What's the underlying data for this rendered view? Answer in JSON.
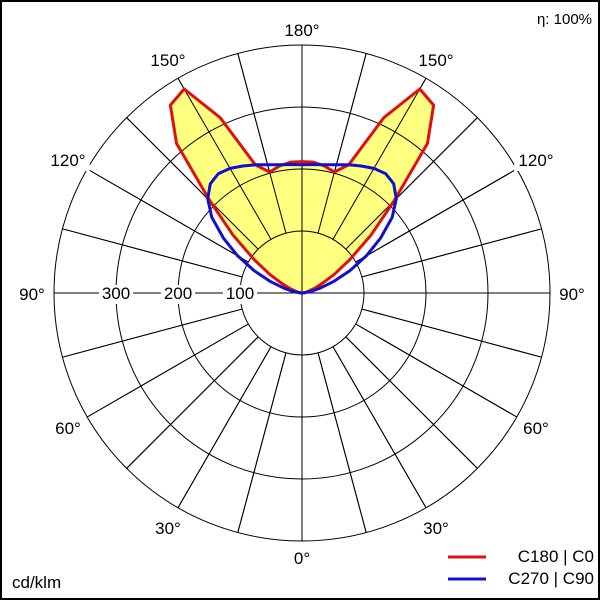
{
  "chart_data": {
    "type": "polar",
    "efficiency_label": "η: 100%",
    "unit_label": "cd/klm",
    "r_max": 400,
    "r_rings": [
      100,
      200,
      300,
      400
    ],
    "r_tick_labels": [
      "100",
      "200",
      "300"
    ],
    "angle_labels": [
      {
        "text": "180°",
        "position": "top"
      },
      {
        "text": "150°",
        "position": "upper-left"
      },
      {
        "text": "150°",
        "position": "upper-right"
      },
      {
        "text": "120°",
        "position": "left-upper"
      },
      {
        "text": "120°",
        "position": "right-upper"
      },
      {
        "text": "90°",
        "position": "left"
      },
      {
        "text": "90°",
        "position": "right"
      },
      {
        "text": "60°",
        "position": "left-lower"
      },
      {
        "text": "60°",
        "position": "right-lower"
      },
      {
        "text": "30°",
        "position": "lower-left"
      },
      {
        "text": "30°",
        "position": "lower-right"
      },
      {
        "text": "0°",
        "position": "bottom"
      }
    ],
    "series": [
      {
        "name": "C180 | C0",
        "color": "#e01010",
        "fill": "#ffff80",
        "angles": [
          0,
          10,
          20,
          30,
          40,
          50,
          60,
          65,
          70,
          75,
          80,
          85,
          90,
          95,
          100,
          105,
          110,
          115,
          120,
          125,
          130,
          135,
          140,
          145,
          150,
          155,
          160,
          165,
          170,
          175,
          180
        ],
        "values": [
          0,
          0,
          0,
          0,
          0,
          0,
          0,
          0,
          0,
          0,
          0,
          0,
          0,
          2,
          5,
          10,
          20,
          35,
          60,
          95,
          145,
          210,
          315,
          370,
          380,
          312,
          220,
          202,
          208,
          212,
          212
        ]
      },
      {
        "name": "C270 | C90",
        "color": "#1010d0",
        "angles": [
          0,
          10,
          20,
          30,
          40,
          50,
          60,
          65,
          70,
          75,
          80,
          85,
          90,
          95,
          100,
          105,
          110,
          115,
          120,
          125,
          130,
          135,
          140,
          145,
          150,
          155,
          160,
          165,
          170,
          175,
          180
        ],
        "values": [
          0,
          0,
          0,
          0,
          0,
          0,
          0,
          0,
          0,
          0,
          0,
          0,
          0,
          4,
          15,
          30,
          55,
          85,
          120,
          155,
          190,
          215,
          230,
          235,
          232,
          226,
          220,
          214,
          210,
          208,
          207
        ]
      }
    ]
  }
}
